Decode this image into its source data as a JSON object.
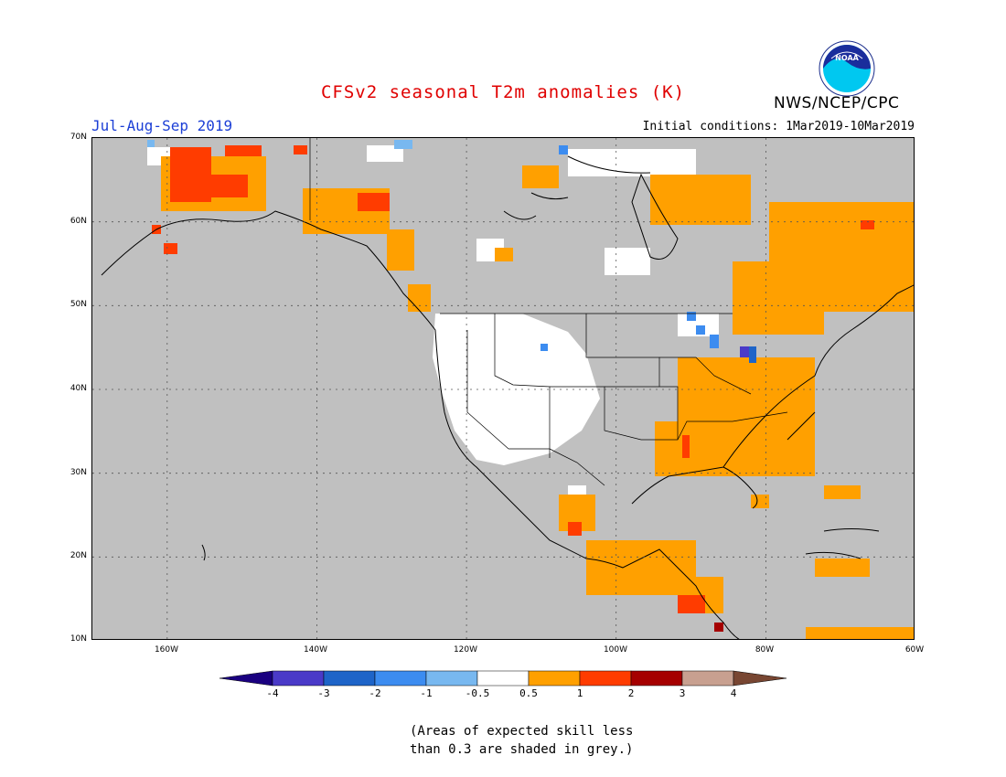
{
  "header": {
    "title": "CFSv2 seasonal T2m anomalies (K)",
    "period": "Jul-Aug-Sep 2019",
    "initial_conditions": "Initial conditions: 1Mar2019-10Mar2019",
    "agency": "NWS/NCEP/CPC",
    "logo_text": "NOAA"
  },
  "map": {
    "background_color": "#c0c0c0",
    "lat_labels": [
      "70N",
      "60N",
      "50N",
      "40N",
      "30N",
      "20N",
      "10N"
    ],
    "lon_labels": [
      "160W",
      "140W",
      "120W",
      "100W",
      "80W",
      "60W"
    ]
  },
  "colorbar": {
    "labels": [
      "-4",
      "-3",
      "-2",
      "-1",
      "-0.5",
      "0.5",
      "1",
      "2",
      "3",
      "4"
    ],
    "colors": [
      "#1a0080",
      "#4a3ac8",
      "#1e64c8",
      "#3c8cf0",
      "#78b8f0",
      "#ffffff",
      "#ffa000",
      "#ff3c00",
      "#a50000",
      "#c8a090",
      "#784632"
    ]
  },
  "footnote": {
    "line1": "(Areas of expected skill less",
    "line2": "than 0.3 are shaded in grey.)"
  }
}
